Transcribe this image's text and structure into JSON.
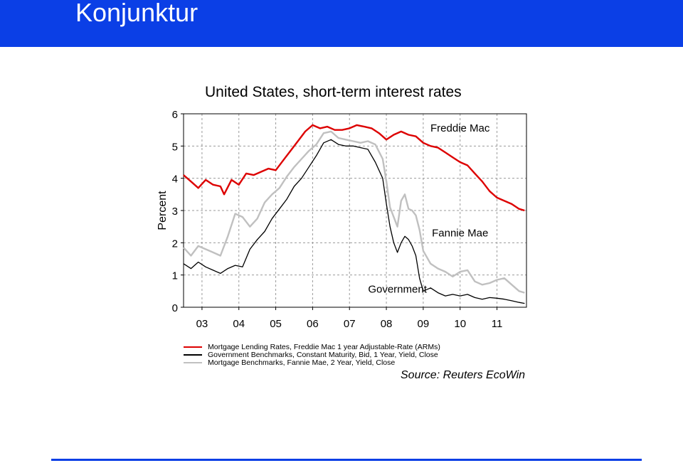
{
  "page": {
    "header_title": "Konjunktur",
    "colors": {
      "header_bg": "#0b3fe6",
      "header_text": "#ffffff",
      "footer_line": "#0b3fe6"
    }
  },
  "chart_data": {
    "type": "line",
    "title": "United States, short-term interest rates",
    "ylabel": "Percent",
    "xlabel": "",
    "ylim": [
      0,
      6
    ],
    "yticks": [
      "0",
      "1",
      "2",
      "3",
      "4",
      "5",
      "6"
    ],
    "xlim": [
      2002.5,
      2011.8
    ],
    "xticks": [
      "03",
      "04",
      "05",
      "06",
      "07",
      "08",
      "09",
      "10",
      "11"
    ],
    "xtick_years": [
      2003,
      2004,
      2005,
      2006,
      2007,
      2008,
      2009,
      2010,
      2011
    ],
    "grid": true,
    "annotations": [
      {
        "text": "Freddie Mac",
        "series": 0
      },
      {
        "text": "Fannie Mae",
        "series": 2
      },
      {
        "text": "Government",
        "series": 1
      }
    ],
    "series": [
      {
        "name": "Mortgage Lending Rates, Freddie Mac 1 year Adjustable-Rate (ARMs)",
        "color": "#dd0000",
        "x": [
          2002.5,
          2002.7,
          2002.9,
          2003.1,
          2003.3,
          2003.5,
          2003.6,
          2003.8,
          2004.0,
          2004.2,
          2004.4,
          2004.6,
          2004.8,
          2005.0,
          2005.2,
          2005.4,
          2005.6,
          2005.8,
          2006.0,
          2006.2,
          2006.4,
          2006.6,
          2006.8,
          2007.0,
          2007.2,
          2007.4,
          2007.6,
          2007.8,
          2008.0,
          2008.2,
          2008.4,
          2008.6,
          2008.8,
          2009.0,
          2009.2,
          2009.4,
          2009.6,
          2009.8,
          2010.0,
          2010.2,
          2010.4,
          2010.6,
          2010.8,
          2011.0,
          2011.2,
          2011.4,
          2011.6,
          2011.75
        ],
        "y": [
          4.1,
          3.9,
          3.7,
          3.95,
          3.8,
          3.75,
          3.5,
          3.95,
          3.8,
          4.15,
          4.1,
          4.2,
          4.3,
          4.25,
          4.55,
          4.85,
          5.15,
          5.45,
          5.65,
          5.55,
          5.6,
          5.5,
          5.5,
          5.55,
          5.65,
          5.6,
          5.55,
          5.4,
          5.2,
          5.35,
          5.45,
          5.35,
          5.3,
          5.1,
          5.0,
          4.95,
          4.8,
          4.65,
          4.5,
          4.4,
          4.15,
          3.9,
          3.6,
          3.4,
          3.3,
          3.2,
          3.05,
          3.0
        ]
      },
      {
        "name": "Government Benchmarks, Constant Maturity, Bid, 1 Year, Yield, Close",
        "color": "#000000",
        "x": [
          2002.5,
          2002.7,
          2002.9,
          2003.1,
          2003.3,
          2003.5,
          2003.7,
          2003.9,
          2004.1,
          2004.3,
          2004.5,
          2004.7,
          2004.9,
          2005.1,
          2005.3,
          2005.5,
          2005.7,
          2005.9,
          2006.1,
          2006.3,
          2006.5,
          2006.7,
          2006.9,
          2007.1,
          2007.3,
          2007.5,
          2007.7,
          2007.9,
          2008.0,
          2008.1,
          2008.2,
          2008.3,
          2008.4,
          2008.5,
          2008.6,
          2008.7,
          2008.8,
          2008.9,
          2009.0,
          2009.2,
          2009.4,
          2009.6,
          2009.8,
          2010.0,
          2010.2,
          2010.4,
          2010.6,
          2010.8,
          2011.0,
          2011.2,
          2011.4,
          2011.6,
          2011.75
        ],
        "y": [
          1.35,
          1.2,
          1.4,
          1.25,
          1.15,
          1.05,
          1.2,
          1.3,
          1.25,
          1.8,
          2.1,
          2.35,
          2.75,
          3.05,
          3.35,
          3.75,
          4.0,
          4.35,
          4.7,
          5.1,
          5.2,
          5.05,
          5.0,
          5.0,
          4.95,
          4.9,
          4.5,
          4.0,
          3.2,
          2.5,
          2.0,
          1.7,
          2.0,
          2.2,
          2.1,
          1.9,
          1.6,
          0.9,
          0.5,
          0.6,
          0.45,
          0.35,
          0.4,
          0.35,
          0.4,
          0.3,
          0.25,
          0.3,
          0.28,
          0.25,
          0.2,
          0.15,
          0.12
        ]
      },
      {
        "name": "Mortgage Benchmarks, Fannie Mae, 2 Year, Yield, Close",
        "color": "#c0c0c0",
        "x": [
          2002.5,
          2002.7,
          2002.9,
          2003.1,
          2003.3,
          2003.5,
          2003.7,
          2003.9,
          2004.1,
          2004.3,
          2004.5,
          2004.7,
          2004.9,
          2005.1,
          2005.3,
          2005.5,
          2005.7,
          2005.9,
          2006.1,
          2006.3,
          2006.5,
          2006.7,
          2006.9,
          2007.1,
          2007.3,
          2007.5,
          2007.7,
          2007.9,
          2008.0,
          2008.1,
          2008.2,
          2008.3,
          2008.4,
          2008.5,
          2008.6,
          2008.7,
          2008.8,
          2008.9,
          2009.0,
          2009.2,
          2009.4,
          2009.6,
          2009.8,
          2010.0,
          2010.2,
          2010.4,
          2010.6,
          2010.8,
          2011.0,
          2011.2,
          2011.4,
          2011.6,
          2011.75
        ],
        "y": [
          1.85,
          1.6,
          1.9,
          1.8,
          1.7,
          1.6,
          2.2,
          2.9,
          2.8,
          2.5,
          2.75,
          3.25,
          3.5,
          3.7,
          4.05,
          4.35,
          4.6,
          4.85,
          5.05,
          5.4,
          5.45,
          5.25,
          5.2,
          5.15,
          5.1,
          5.15,
          5.05,
          4.6,
          3.9,
          3.1,
          2.8,
          2.5,
          3.3,
          3.5,
          3.05,
          3.0,
          2.85,
          2.4,
          1.75,
          1.35,
          1.2,
          1.1,
          0.95,
          1.1,
          1.15,
          0.8,
          0.7,
          0.75,
          0.85,
          0.9,
          0.7,
          0.5,
          0.45
        ]
      }
    ],
    "legend_position": "bottom",
    "source": "Source: Reuters EcoWin"
  }
}
